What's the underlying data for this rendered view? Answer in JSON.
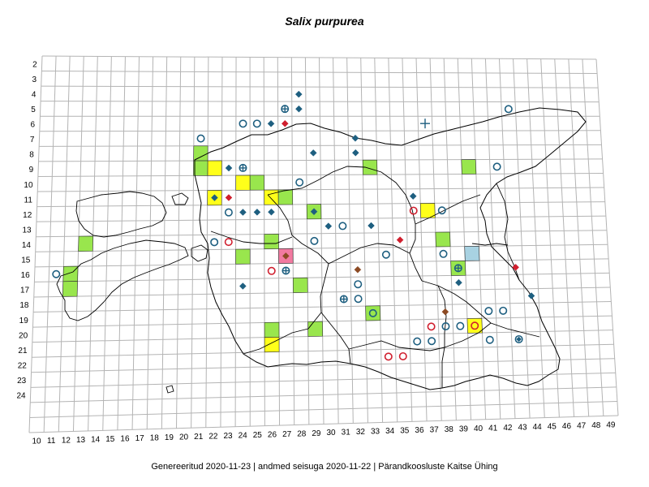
{
  "title": "Salix purpurea",
  "footer": "Genereeritud 2020-11-23  |  andmed seisuga 2020-11-22  |  Pärandkoosluste Kaitse Ühing",
  "colors": {
    "grid": "#b4b4b4",
    "outline": "#000000",
    "cell_green": "#99e64d",
    "cell_yellow": "#ffff1a",
    "cell_pink": "#f27aa0",
    "cell_blue": "#a8d2e2",
    "marker_blue": "#1e5f80",
    "marker_red": "#d01f2e",
    "marker_brown": "#8c4a23"
  },
  "grid": {
    "row_labels": [
      "2",
      "3",
      "4",
      "5",
      "6",
      "7",
      "8",
      "9",
      "10",
      "11",
      "12",
      "13",
      "14",
      "15",
      "16",
      "17",
      "18",
      "19",
      "20",
      "21",
      "22",
      "23",
      "24"
    ],
    "col_labels": [
      "10",
      "11",
      "12",
      "13",
      "14",
      "15",
      "16",
      "17",
      "18",
      "19",
      "20",
      "21",
      "22",
      "23",
      "24",
      "25",
      "26",
      "27",
      "28",
      "29",
      "30",
      "31",
      "32",
      "33",
      "34",
      "35",
      "36",
      "37",
      "38",
      "39",
      "40",
      "41",
      "42",
      "43",
      "44",
      "45",
      "46",
      "47",
      "48",
      "49"
    ]
  },
  "cells": [
    {
      "col": 21,
      "row": 8,
      "fill": "green"
    },
    {
      "col": 22,
      "row": 9,
      "fill": "yellow"
    },
    {
      "col": 21,
      "row": 9,
      "fill": "green"
    },
    {
      "col": 24,
      "row": 10,
      "fill": "yellow"
    },
    {
      "col": 25,
      "row": 10,
      "fill": "green"
    },
    {
      "col": 22,
      "row": 11,
      "fill": "yellow"
    },
    {
      "col": 26,
      "row": 11,
      "fill": "yellow"
    },
    {
      "col": 27,
      "row": 11,
      "fill": "green"
    },
    {
      "col": 29,
      "row": 12,
      "fill": "green"
    },
    {
      "col": 33,
      "row": 9,
      "fill": "green"
    },
    {
      "col": 13,
      "row": 14,
      "fill": "green"
    },
    {
      "col": 26,
      "row": 14,
      "fill": "green"
    },
    {
      "col": 24,
      "row": 15,
      "fill": "green"
    },
    {
      "col": 27,
      "row": 15,
      "fill": "pink"
    },
    {
      "col": 12,
      "row": 16,
      "fill": "green"
    },
    {
      "col": 12,
      "row": 17,
      "fill": "green"
    },
    {
      "col": 28,
      "row": 17,
      "fill": "green"
    },
    {
      "col": 37,
      "row": 12,
      "fill": "yellow"
    },
    {
      "col": 38,
      "row": 14,
      "fill": "green"
    },
    {
      "col": 40,
      "row": 15,
      "fill": "blue"
    },
    {
      "col": 39,
      "row": 16,
      "fill": "green"
    },
    {
      "col": 40,
      "row": 9,
      "fill": "green"
    },
    {
      "col": 33,
      "row": 19,
      "fill": "green"
    },
    {
      "col": 26,
      "row": 20,
      "fill": "green"
    },
    {
      "col": 29,
      "row": 20,
      "fill": "green"
    },
    {
      "col": 26,
      "row": 21,
      "fill": "yellow"
    },
    {
      "col": 40,
      "row": 20,
      "fill": "yellow"
    }
  ],
  "markers": [
    {
      "col": 28,
      "row": 4,
      "type": "diamond",
      "color": "blue"
    },
    {
      "col": 27,
      "row": 5,
      "type": "circle-plus",
      "color": "blue"
    },
    {
      "col": 28,
      "row": 5,
      "type": "diamond",
      "color": "blue"
    },
    {
      "col": 24,
      "row": 6,
      "type": "circle",
      "color": "blue"
    },
    {
      "col": 25,
      "row": 6,
      "type": "circle",
      "color": "blue"
    },
    {
      "col": 26,
      "row": 6,
      "type": "diamond",
      "color": "blue"
    },
    {
      "col": 27,
      "row": 6,
      "type": "diamond",
      "color": "red"
    },
    {
      "col": 37,
      "row": 6,
      "type": "plus",
      "color": "blue"
    },
    {
      "col": 43,
      "row": 5,
      "type": "circle",
      "color": "blue"
    },
    {
      "col": 21,
      "row": 7,
      "type": "circle",
      "color": "blue"
    },
    {
      "col": 32,
      "row": 7,
      "type": "diamond",
      "color": "blue"
    },
    {
      "col": 29,
      "row": 8,
      "type": "diamond",
      "color": "blue"
    },
    {
      "col": 32,
      "row": 8,
      "type": "diamond",
      "color": "blue"
    },
    {
      "col": 23,
      "row": 9,
      "type": "diamond",
      "color": "blue"
    },
    {
      "col": 24,
      "row": 9,
      "type": "circle-plus",
      "color": "blue"
    },
    {
      "col": 42,
      "row": 9,
      "type": "circle",
      "color": "blue"
    },
    {
      "col": 28,
      "row": 10,
      "type": "circle",
      "color": "blue"
    },
    {
      "col": 22,
      "row": 11,
      "type": "diamond",
      "color": "blue"
    },
    {
      "col": 23,
      "row": 11,
      "type": "diamond",
      "color": "red"
    },
    {
      "col": 36,
      "row": 11,
      "type": "diamond",
      "color": "blue"
    },
    {
      "col": 23,
      "row": 12,
      "type": "circle",
      "color": "blue"
    },
    {
      "col": 24,
      "row": 12,
      "type": "diamond",
      "color": "blue"
    },
    {
      "col": 25,
      "row": 12,
      "type": "diamond",
      "color": "blue"
    },
    {
      "col": 26,
      "row": 12,
      "type": "diamond",
      "color": "blue"
    },
    {
      "col": 29,
      "row": 12,
      "type": "diamond",
      "color": "blue"
    },
    {
      "col": 36,
      "row": 12,
      "type": "circle",
      "color": "red"
    },
    {
      "col": 38,
      "row": 12,
      "type": "circle",
      "color": "blue"
    },
    {
      "col": 30,
      "row": 13,
      "type": "diamond",
      "color": "blue"
    },
    {
      "col": 31,
      "row": 13,
      "type": "circle",
      "color": "blue"
    },
    {
      "col": 33,
      "row": 13,
      "type": "diamond",
      "color": "blue"
    },
    {
      "col": 22,
      "row": 14,
      "type": "circle",
      "color": "blue"
    },
    {
      "col": 23,
      "row": 14,
      "type": "circle",
      "color": "red"
    },
    {
      "col": 29,
      "row": 14,
      "type": "circle",
      "color": "blue"
    },
    {
      "col": 35,
      "row": 14,
      "type": "diamond",
      "color": "red"
    },
    {
      "col": 27,
      "row": 15,
      "type": "diamond",
      "color": "brown"
    },
    {
      "col": 34,
      "row": 15,
      "type": "circle",
      "color": "blue"
    },
    {
      "col": 38,
      "row": 15,
      "type": "circle",
      "color": "blue"
    },
    {
      "col": 11,
      "row": 16,
      "type": "circle",
      "color": "blue"
    },
    {
      "col": 26,
      "row": 16,
      "type": "circle",
      "color": "red"
    },
    {
      "col": 27,
      "row": 16,
      "type": "circle-plus",
      "color": "blue"
    },
    {
      "col": 32,
      "row": 16,
      "type": "diamond",
      "color": "brown"
    },
    {
      "col": 39,
      "row": 16,
      "type": "circle-plus",
      "color": "blue"
    },
    {
      "col": 43,
      "row": 16,
      "type": "diamond",
      "color": "red"
    },
    {
      "col": 24,
      "row": 17,
      "type": "diamond",
      "color": "blue"
    },
    {
      "col": 32,
      "row": 17,
      "type": "circle",
      "color": "blue"
    },
    {
      "col": 39,
      "row": 17,
      "type": "diamond",
      "color": "blue"
    },
    {
      "col": 31,
      "row": 18,
      "type": "circle-plus",
      "color": "blue"
    },
    {
      "col": 32,
      "row": 18,
      "type": "circle",
      "color": "blue"
    },
    {
      "col": 44,
      "row": 18,
      "type": "diamond",
      "color": "blue"
    },
    {
      "col": 33,
      "row": 19,
      "type": "circle",
      "color": "blue"
    },
    {
      "col": 38,
      "row": 19,
      "type": "diamond",
      "color": "brown"
    },
    {
      "col": 41,
      "row": 19,
      "type": "circle",
      "color": "blue"
    },
    {
      "col": 42,
      "row": 19,
      "type": "circle",
      "color": "blue"
    },
    {
      "col": 37,
      "row": 20,
      "type": "circle",
      "color": "red"
    },
    {
      "col": 38,
      "row": 20,
      "type": "circle",
      "color": "blue"
    },
    {
      "col": 39,
      "row": 20,
      "type": "circle",
      "color": "blue"
    },
    {
      "col": 40,
      "row": 20,
      "type": "circle",
      "color": "red"
    },
    {
      "col": 36,
      "row": 21,
      "type": "circle",
      "color": "blue"
    },
    {
      "col": 37,
      "row": 21,
      "type": "circle",
      "color": "blue"
    },
    {
      "col": 41,
      "row": 21,
      "type": "circle",
      "color": "blue"
    },
    {
      "col": 43,
      "row": 21,
      "type": "circle-diamond",
      "color": "blue"
    },
    {
      "col": 34,
      "row": 22,
      "type": "circle",
      "color": "red"
    },
    {
      "col": 35,
      "row": 22,
      "type": "circle",
      "color": "red"
    }
  ]
}
